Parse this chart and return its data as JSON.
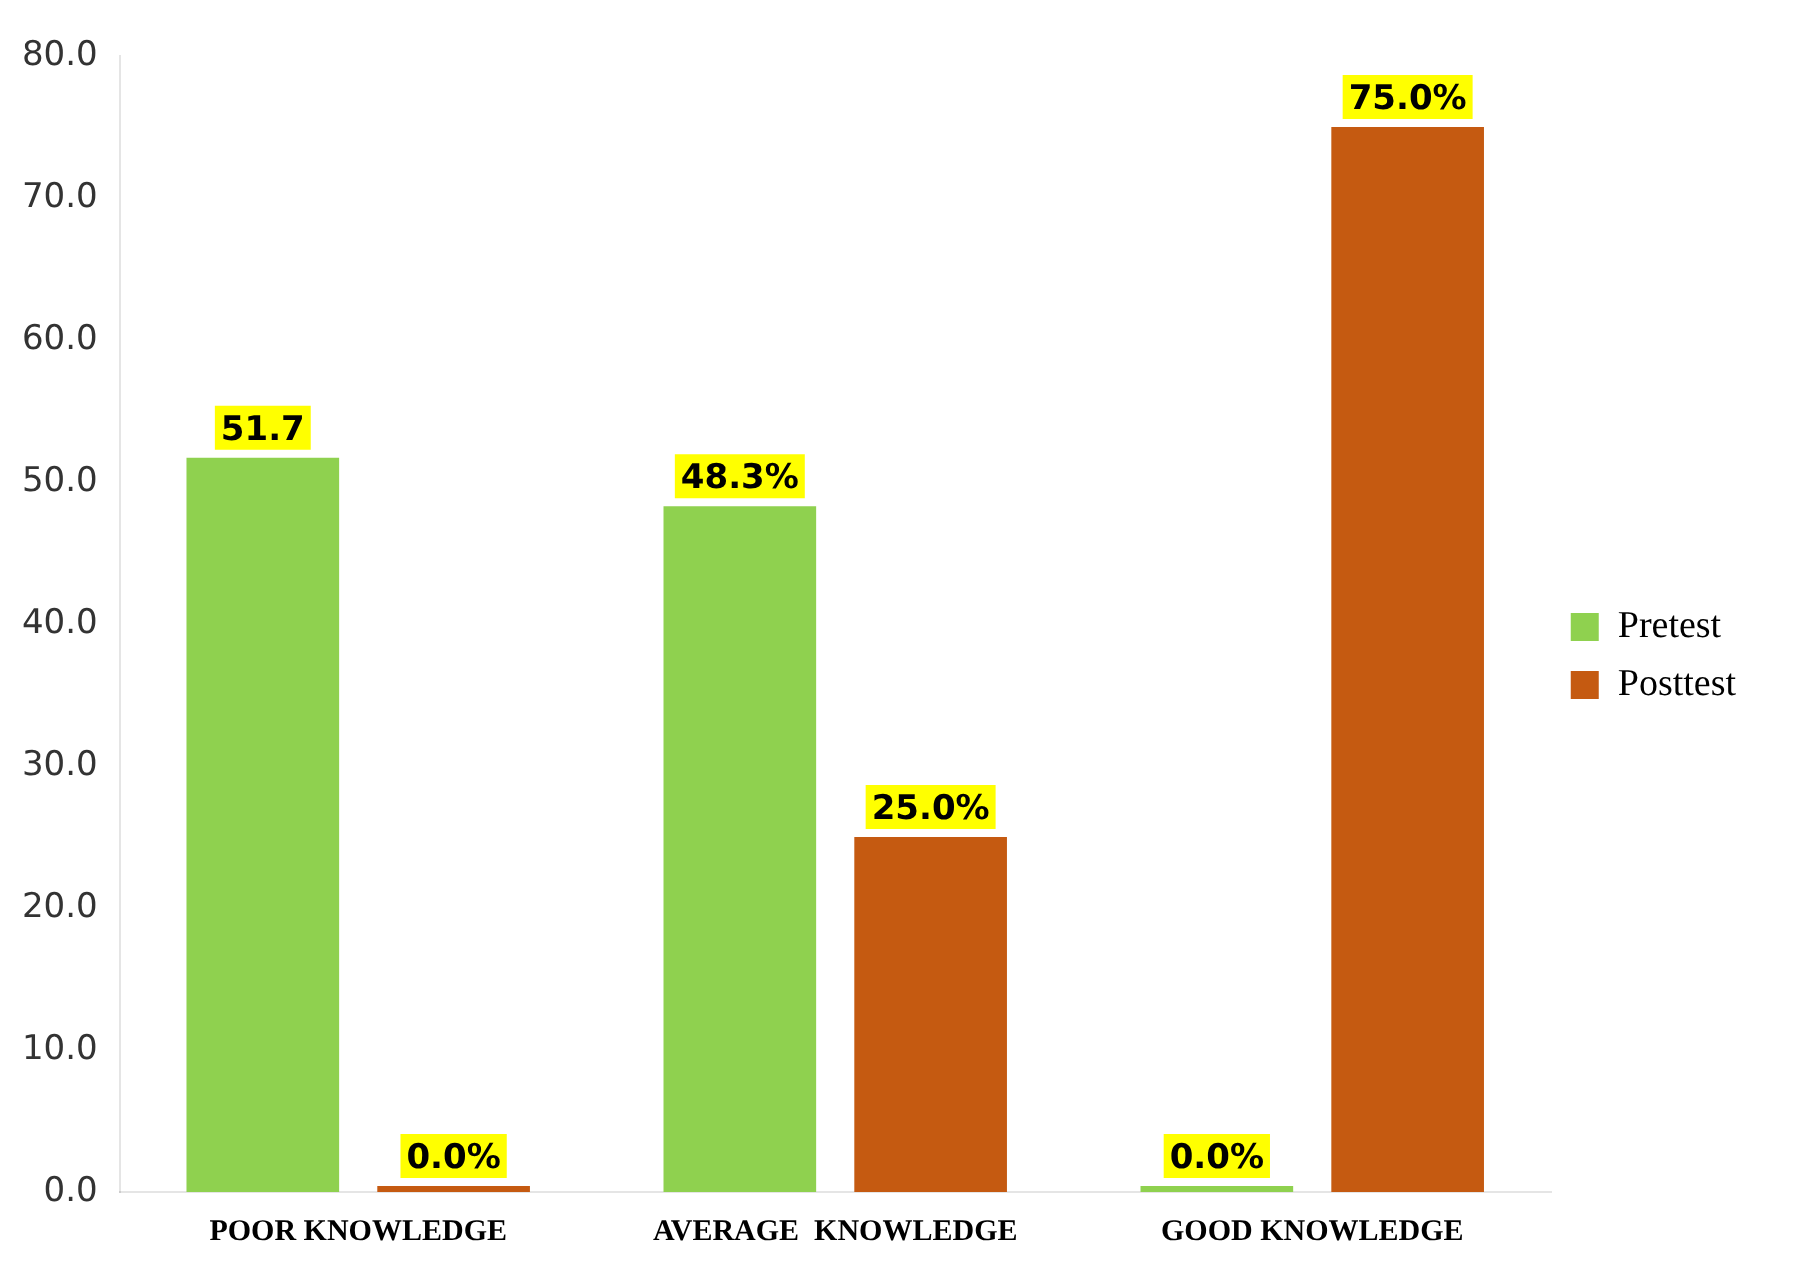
{
  "chart_data": {
    "type": "bar",
    "categories": [
      "POOR KNOWLEDGE",
      "AVERAGE  KNOWLEDGE",
      "GOOD KNOWLEDGE"
    ],
    "series": [
      {
        "name": "Pretest",
        "color": "#8fd14f",
        "values": [
          51.7,
          48.3,
          0.0
        ],
        "value_labels": [
          "51.7",
          "48.3%",
          "0.0%"
        ]
      },
      {
        "name": "Posttest",
        "color": "#c55a11",
        "values": [
          0.0,
          25.0,
          75.0
        ],
        "value_labels": [
          "0.0%",
          "25.0%",
          "75.0%"
        ]
      }
    ],
    "ylim": [
      0,
      80
    ],
    "yticks": [
      {
        "value": 0,
        "label": "0.0"
      },
      {
        "value": 10,
        "label": "10.0"
      },
      {
        "value": 20,
        "label": "20.0"
      },
      {
        "value": 30,
        "label": "30.0"
      },
      {
        "value": 40,
        "label": "40.0"
      },
      {
        "value": 50,
        "label": "50.0"
      },
      {
        "value": 60,
        "label": "60.0"
      },
      {
        "value": 70,
        "label": "70.0"
      },
      {
        "value": 80,
        "label": "80.0"
      }
    ],
    "grid": false,
    "legend": "right"
  }
}
